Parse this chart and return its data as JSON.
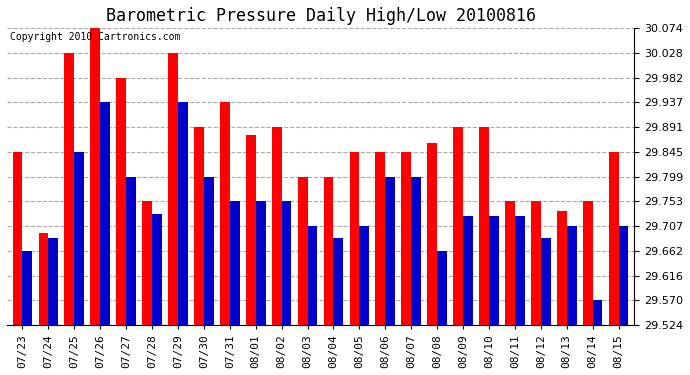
{
  "title": "Barometric Pressure Daily High/Low 20100816",
  "copyright": "Copyright 2010 Cartronics.com",
  "dates": [
    "07/23",
    "07/24",
    "07/25",
    "07/26",
    "07/27",
    "07/28",
    "07/29",
    "07/30",
    "07/31",
    "08/01",
    "08/02",
    "08/03",
    "08/04",
    "08/05",
    "08/06",
    "08/07",
    "08/08",
    "08/09",
    "08/10",
    "08/11",
    "08/12",
    "08/13",
    "08/14",
    "08/15"
  ],
  "highs": [
    29.845,
    29.695,
    30.028,
    30.074,
    29.982,
    29.753,
    30.028,
    29.891,
    29.937,
    29.875,
    29.891,
    29.799,
    29.799,
    29.845,
    29.845,
    29.845,
    29.862,
    29.891,
    29.891,
    29.753,
    29.753,
    29.735,
    29.753,
    29.845
  ],
  "lows": [
    29.662,
    29.685,
    29.845,
    29.937,
    29.799,
    29.73,
    29.937,
    29.799,
    29.753,
    29.753,
    29.753,
    29.707,
    29.685,
    29.707,
    29.799,
    29.799,
    29.662,
    29.727,
    29.727,
    29.727,
    29.685,
    29.707,
    29.57,
    29.707
  ],
  "high_color": "#ff0000",
  "low_color": "#0000cc",
  "bg_color": "#ffffff",
  "plot_bg_color": "#ffffff",
  "grid_color": "#aaaaaa",
  "ymin": 29.524,
  "ymax": 30.074,
  "yticks": [
    29.524,
    29.57,
    29.616,
    29.662,
    29.707,
    29.753,
    29.799,
    29.845,
    29.891,
    29.937,
    29.982,
    30.028,
    30.074
  ],
  "title_fontsize": 12,
  "copyright_fontsize": 7,
  "tick_fontsize": 8,
  "bar_width": 0.38
}
